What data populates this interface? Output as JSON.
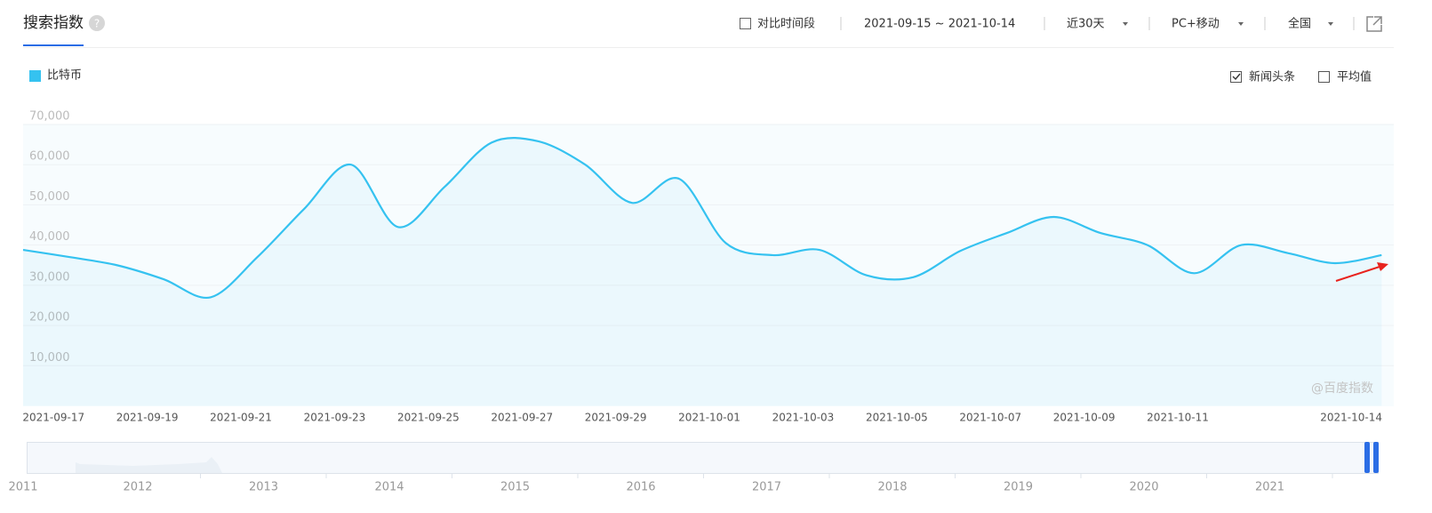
{
  "header": {
    "title": "搜索指数",
    "help": "?",
    "compare": "对比时间段",
    "date_range": "2021-09-15 ~ 2021-10-14",
    "period": "近30天",
    "device": "PC+移动",
    "region": "全国"
  },
  "options": {
    "news": "新闻头条",
    "news_checked": true,
    "average": "平均值",
    "average_checked": false
  },
  "watermark": "@百度指数",
  "navigator": {
    "years": [
      "2011",
      "2012",
      "2013",
      "2014",
      "2015",
      "2016",
      "2017",
      "2018",
      "2019",
      "2020",
      "2021"
    ]
  },
  "chart_data": {
    "type": "line",
    "categories": [
      null,
      null,
      "2021-09-17",
      null,
      "2021-09-19",
      null,
      "2021-09-21",
      null,
      "2021-09-23",
      null,
      "2021-09-25",
      null,
      "2021-09-27",
      null,
      "2021-09-29",
      null,
      "2021-10-01",
      null,
      "2021-10-03",
      null,
      "2021-10-05",
      null,
      "2021-10-07",
      null,
      "2021-10-09",
      null,
      "2021-10-11",
      null,
      null,
      "2021-10-14"
    ],
    "series": [
      {
        "name": "比特币",
        "color": "#35c2f0",
        "values": [
          38800,
          37000,
          35000,
          31500,
          27000,
          37000,
          49000,
          60000,
          44500,
          54500,
          65500,
          65800,
          60000,
          50500,
          56500,
          40500,
          37500,
          38800,
          32500,
          32000,
          38500,
          43000,
          47000,
          43000,
          40000,
          33000,
          40000,
          38000,
          35500,
          37500
        ]
      }
    ],
    "ylim": [
      0,
      70000
    ],
    "yticks": [
      {
        "value": 10000,
        "label": "10,000"
      },
      {
        "value": 20000,
        "label": "20,000"
      },
      {
        "value": 30000,
        "label": "30,000"
      },
      {
        "value": 40000,
        "label": "40,000"
      },
      {
        "value": 50000,
        "label": "50,000"
      },
      {
        "value": 60000,
        "label": "60,000"
      },
      {
        "value": 70000,
        "label": "70,000"
      }
    ],
    "grid": true
  }
}
